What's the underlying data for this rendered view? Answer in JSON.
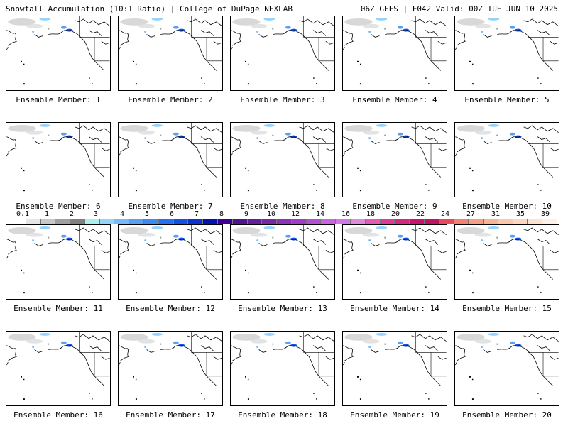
{
  "header": {
    "left": "Snowfall Accumulation (10:1 Ratio) | College of DuPage NEXLAB",
    "right": "06Z GEFS | F042 Valid: 00Z TUE JUN 10 2025"
  },
  "panels": [
    {
      "label": "Ensemble Member: 1"
    },
    {
      "label": "Ensemble Member: 2"
    },
    {
      "label": "Ensemble Member: 3"
    },
    {
      "label": "Ensemble Member: 4"
    },
    {
      "label": "Ensemble Member: 5"
    },
    {
      "label": "Ensemble Member: 6"
    },
    {
      "label": "Ensemble Member: 7"
    },
    {
      "label": "Ensemble Member: 8"
    },
    {
      "label": "Ensemble Member: 9"
    },
    {
      "label": "Ensemble Member: 10"
    },
    {
      "label": "Ensemble Member: 11"
    },
    {
      "label": "Ensemble Member: 12"
    },
    {
      "label": "Ensemble Member: 13"
    },
    {
      "label": "Ensemble Member: 14"
    },
    {
      "label": "Ensemble Member: 15"
    },
    {
      "label": "Ensemble Member: 16"
    },
    {
      "label": "Ensemble Member: 17"
    },
    {
      "label": "Ensemble Member: 18"
    },
    {
      "label": "Ensemble Member: 19"
    },
    {
      "label": "Ensemble Member: 20"
    }
  ],
  "colorbar": {
    "labels": [
      "0.1",
      "1",
      "2",
      "3",
      "4",
      "5",
      "6",
      "7",
      "8",
      "9",
      "10",
      "12",
      "14",
      "16",
      "18",
      "20",
      "22",
      "24",
      "27",
      "31",
      "35",
      "39"
    ],
    "colors": [
      "#ffffff",
      "#e6e6e6",
      "#c8c8c8",
      "#a0a0a0",
      "#808080",
      "#aaf0f0",
      "#96d2fa",
      "#78b9fa",
      "#5aa0f0",
      "#3c8cf0",
      "#2870f0",
      "#1450e6",
      "#0a32d2",
      "#0014b4",
      "#3c0096",
      "#50148c",
      "#641e96",
      "#7828a0",
      "#8c32b4",
      "#a03cc8",
      "#b450d2",
      "#c864dc",
      "#d278e6",
      "#dc8cdc",
      "#e65ab4",
      "#dc3c96",
      "#d2287d",
      "#c8146e",
      "#be1464",
      "#e64b5a",
      "#f0826e",
      "#f5a082",
      "#f5b496",
      "#fac8aa",
      "#fcd8c0",
      "#fde4d0",
      "#fef0e4"
    ]
  }
}
